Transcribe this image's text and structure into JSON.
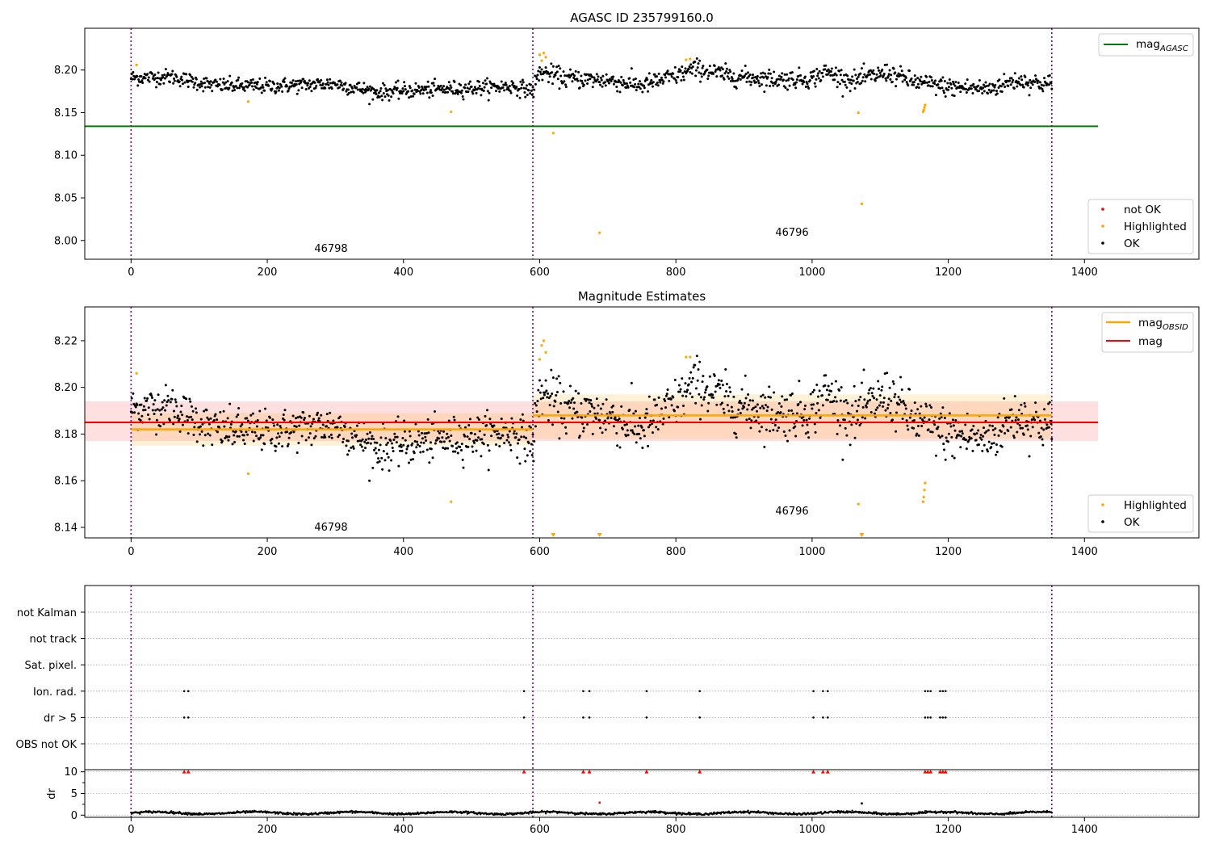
{
  "figure": {
    "panel1_title": "AGASC ID 235799160.0",
    "panel2_title": "Magnitude Estimates",
    "obsid_labels": [
      "46798",
      "46796"
    ],
    "obsid_boundaries": [
      0,
      590,
      1352
    ]
  },
  "legends": {
    "p1_line": {
      "base": "mag",
      "sub": "AGASC",
      "color": "#008000"
    },
    "p1_points": [
      {
        "label": "not OK",
        "color": "#ff0000"
      },
      {
        "label": "Highlighted",
        "color": "#ffa500"
      },
      {
        "label": "OK",
        "color": "#000000"
      }
    ],
    "p2_lines": [
      {
        "base": "mag",
        "sub": "OBSID",
        "color": "#ffa500"
      },
      {
        "base": "mag",
        "sub": "",
        "color": "#ff0000"
      }
    ],
    "p2_points": [
      {
        "label": "Highlighted",
        "color": "#ffa500"
      },
      {
        "label": "OK",
        "color": "#000000"
      }
    ]
  },
  "chart_data": [
    {
      "type": "scatter",
      "title": "AGASC ID 235799160.0",
      "xlim": [
        -68,
        1568
      ],
      "ylim": [
        7.978,
        8.249
      ],
      "xticks": [
        0,
        200,
        400,
        600,
        800,
        1000,
        1200,
        1400
      ],
      "yticks": [
        8.0,
        8.05,
        8.1,
        8.15,
        8.2
      ],
      "ytick_labels": [
        "8.00",
        "8.05",
        "8.10",
        "8.15",
        "8.20"
      ],
      "mag_agasc": 8.134,
      "mag_agasc_xrange": [
        -68,
        1420
      ],
      "ok_series_trend": {
        "x": [
          0,
          60,
          120,
          200,
          300,
          360,
          440,
          500,
          560,
          590,
          600,
          640,
          700,
          750,
          800,
          830,
          880,
          950,
          1000,
          1020,
          1060,
          1110,
          1150,
          1200,
          1260,
          1300,
          1352
        ],
        "y": [
          8.191,
          8.192,
          8.182,
          8.181,
          8.184,
          8.174,
          8.177,
          8.179,
          8.181,
          8.176,
          8.198,
          8.19,
          8.188,
          8.182,
          8.193,
          8.202,
          8.193,
          8.189,
          8.19,
          8.198,
          8.187,
          8.197,
          8.186,
          8.18,
          8.178,
          8.188,
          8.183
        ]
      },
      "highlighted": {
        "x": [
          8,
          172,
          470,
          600,
          603,
          606,
          609,
          620,
          688,
          815,
          821,
          1068,
          1073,
          1163,
          1164,
          1165,
          1166
        ],
        "y": [
          8.206,
          8.163,
          8.151,
          8.218,
          8.211,
          8.22,
          8.215,
          8.126,
          8.009,
          8.212,
          8.213,
          8.15,
          8.043,
          8.151,
          8.153,
          8.156,
          8.159
        ]
      },
      "not_ok": {
        "x": [],
        "y": []
      }
    },
    {
      "type": "scatter",
      "title": "Magnitude Estimates",
      "xlim": [
        -68,
        1568
      ],
      "ylim": [
        8.1355,
        8.2345
      ],
      "xticks": [
        0,
        200,
        400,
        600,
        800,
        1000,
        1200,
        1400
      ],
      "yticks": [
        8.14,
        8.16,
        8.18,
        8.2,
        8.22
      ],
      "ytick_labels": [
        "8.14",
        "8.16",
        "8.18",
        "8.20",
        "8.22"
      ],
      "mag": 8.185,
      "mag_band": [
        8.177,
        8.194
      ],
      "mag_obsid": [
        {
          "x": [
            0,
            590
          ],
          "value": 8.182,
          "band": [
            8.175,
            8.189
          ]
        },
        {
          "x": [
            590,
            1352
          ],
          "value": 8.188,
          "band": [
            8.178,
            8.197
          ]
        }
      ],
      "highlighted": {
        "x": [
          8,
          172,
          470,
          600,
          603,
          606,
          609,
          815,
          821,
          1068,
          1163,
          1164,
          1165,
          1166
        ],
        "y": [
          8.206,
          8.163,
          8.151,
          8.212,
          8.218,
          8.22,
          8.215,
          8.213,
          8.213,
          8.15,
          8.151,
          8.153,
          8.156,
          8.159
        ]
      },
      "out_of_range_markers": {
        "x": [
          620,
          688,
          1073
        ]
      }
    },
    {
      "type": "scatter",
      "title": "",
      "xlim": [
        -68,
        1568
      ],
      "categories": [
        "not Kalman",
        "not track",
        "Sat. pixel.",
        "Ion. rad.",
        "dr > 5",
        "OBS not OK"
      ],
      "flags_ion_rad_x": [
        78,
        84,
        577,
        664,
        673,
        757,
        835,
        1002,
        1016,
        1023,
        1166,
        1170,
        1174,
        1188,
        1192,
        1196
      ],
      "flags_dr_gt5_x": [
        78,
        84,
        577,
        664,
        673,
        757,
        835,
        1002,
        1016,
        1023,
        1166,
        1170,
        1174,
        1188,
        1192,
        1196
      ],
      "dr": {
        "ylabel": "dr",
        "ylim": [
          -0.5,
          10.5
        ],
        "yticks": [
          0,
          5,
          10
        ],
        "clipped_at_10_x": [
          78,
          84,
          577,
          664,
          673,
          757,
          835,
          1002,
          1016,
          1023,
          1166,
          1170,
          1174,
          1188,
          1192,
          1196
        ],
        "outliers": {
          "x": [
            688,
            1073
          ],
          "y": [
            2.9,
            2.7
          ]
        },
        "baseline_level": 0.5
      }
    }
  ]
}
